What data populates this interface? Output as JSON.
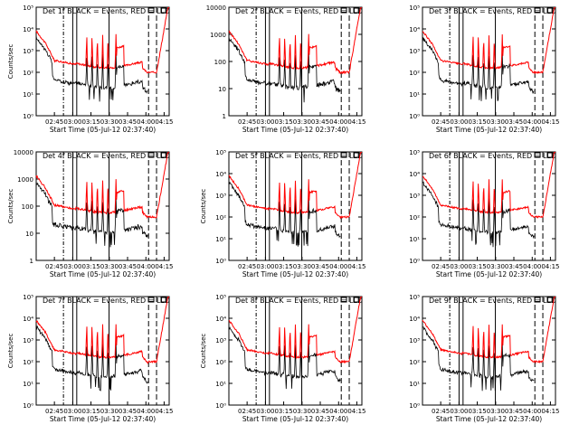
{
  "chart_data": [
    {
      "type": "line",
      "title": "Det 1f BLACK = Events, RED = LLD",
      "xlabel": "Start Time (05-Jul-12 02:37:40)",
      "ylabel": "Counts/sec",
      "yscale": "log",
      "ylim": [
        1,
        100000
      ],
      "yticks": [
        "10⁰",
        "10¹",
        "10²",
        "10³",
        "10⁴",
        "10⁵"
      ],
      "xticks": [
        "02:45",
        "03:00",
        "03:15",
        "03:30",
        "03:45",
        "04:00",
        "04:15"
      ],
      "series": [
        {
          "name": "Events",
          "color": "#000000"
        },
        {
          "name": "LLD",
          "color": "#ff0000"
        }
      ]
    },
    {
      "type": "line",
      "title": "Det 2f BLACK = Events, RED = LLD",
      "xlabel": "Start Time (05-Jul-12 02:37:40)",
      "ylabel": "",
      "yscale": "log",
      "ylim": [
        1,
        10000
      ],
      "yticks": [
        "1",
        "10",
        "100",
        "1000",
        "10000"
      ],
      "xticks": [
        "02:45",
        "03:00",
        "03:15",
        "03:30",
        "03:45",
        "04:00",
        "04:15"
      ],
      "series": [
        {
          "name": "Events",
          "color": "#000000"
        },
        {
          "name": "LLD",
          "color": "#ff0000"
        }
      ]
    },
    {
      "type": "line",
      "title": "Det 3f BLACK = Events, RED = LLD",
      "xlabel": "Start Time (05-Jul-12 02:37:40)",
      "ylabel": "",
      "yscale": "log",
      "ylim": [
        1,
        100000
      ],
      "yticks": [
        "10⁰",
        "10¹",
        "10²",
        "10³",
        "10⁴",
        "10⁵"
      ],
      "xticks": [
        "02:45",
        "03:00",
        "03:15",
        "03:30",
        "03:45",
        "04:00",
        "04:15"
      ],
      "series": [
        {
          "name": "Events",
          "color": "#000000"
        },
        {
          "name": "LLD",
          "color": "#ff0000"
        }
      ]
    },
    {
      "type": "line",
      "title": "Det 4f BLACK = Events, RED = LLD",
      "xlabel": "Start Time (05-Jul-12 02:37:40)",
      "ylabel": "Counts/sec",
      "yscale": "log",
      "ylim": [
        1,
        10000
      ],
      "yticks": [
        "1",
        "10",
        "100",
        "1000",
        "10000"
      ],
      "xticks": [
        "02:45",
        "03:00",
        "03:15",
        "03:30",
        "03:45",
        "04:00",
        "04:15"
      ],
      "series": [
        {
          "name": "Events",
          "color": "#000000"
        },
        {
          "name": "LLD",
          "color": "#ff0000"
        }
      ]
    },
    {
      "type": "line",
      "title": "Det 5f BLACK = Events, RED = LLD",
      "xlabel": "Start Time (05-Jul-12 02:37:40)",
      "ylabel": "Counts/sec",
      "yscale": "log",
      "ylim": [
        1,
        100000
      ],
      "yticks": [
        "10⁰",
        "10¹",
        "10²",
        "10³",
        "10⁴",
        "10⁵"
      ],
      "xticks": [
        "02:45",
        "03:00",
        "03:15",
        "03:30",
        "03:45",
        "04:00",
        "04:15"
      ],
      "series": [
        {
          "name": "Events",
          "color": "#000000"
        },
        {
          "name": "LLD",
          "color": "#ff0000"
        }
      ]
    },
    {
      "type": "line",
      "title": "Det 6f BLACK = Events, RED = LLD",
      "xlabel": "Start Time (05-Jul-12 02:37:40)",
      "ylabel": "",
      "yscale": "log",
      "ylim": [
        1,
        100000
      ],
      "yticks": [
        "10⁰",
        "10¹",
        "10²",
        "10³",
        "10⁴",
        "10⁵"
      ],
      "xticks": [
        "02:45",
        "03:00",
        "03:15",
        "03:30",
        "03:45",
        "04:00",
        "04:15"
      ],
      "series": [
        {
          "name": "Events",
          "color": "#000000"
        },
        {
          "name": "LLD",
          "color": "#ff0000"
        }
      ]
    },
    {
      "type": "line",
      "title": "Det 7f BLACK = Events, RED = LLD",
      "xlabel": "Start Time (05-Jul-12 02:37:40)",
      "ylabel": "Counts/sec",
      "yscale": "log",
      "ylim": [
        1,
        100000
      ],
      "yticks": [
        "10⁰",
        "10¹",
        "10²",
        "10³",
        "10⁴",
        "10⁵"
      ],
      "xticks": [
        "02:45",
        "03:00",
        "03:15",
        "03:30",
        "03:45",
        "04:00",
        "04:15"
      ],
      "series": [
        {
          "name": "Events",
          "color": "#000000"
        },
        {
          "name": "LLD",
          "color": "#ff0000"
        }
      ]
    },
    {
      "type": "line",
      "title": "Det 8f BLACK = Events, RED = LLD",
      "xlabel": "Start Time (05-Jul-12 02:37:40)",
      "ylabel": "Counts/sec",
      "yscale": "log",
      "ylim": [
        1,
        100000
      ],
      "yticks": [
        "10⁰",
        "10¹",
        "10²",
        "10³",
        "10⁴",
        "10⁵"
      ],
      "xticks": [
        "02:45",
        "03:00",
        "03:15",
        "03:30",
        "03:45",
        "04:00",
        "04:15"
      ],
      "series": [
        {
          "name": "Events",
          "color": "#000000"
        },
        {
          "name": "LLD",
          "color": "#ff0000"
        }
      ]
    },
    {
      "type": "line",
      "title": "Det 9f BLACK = Events, RED = LLD",
      "xlabel": "Start Time (05-Jul-12 02:37:40)",
      "ylabel": "",
      "yscale": "log",
      "ylim": [
        1,
        100000
      ],
      "yticks": [
        "10⁰",
        "10¹",
        "10²",
        "10³",
        "10⁴",
        "10⁵"
      ],
      "xticks": [
        "02:45",
        "03:00",
        "03:15",
        "03:30",
        "03:45",
        "04:00",
        "04:15"
      ],
      "series": [
        {
          "name": "Events",
          "color": "#000000"
        },
        {
          "name": "LLD",
          "color": "#ff0000"
        }
      ]
    }
  ]
}
